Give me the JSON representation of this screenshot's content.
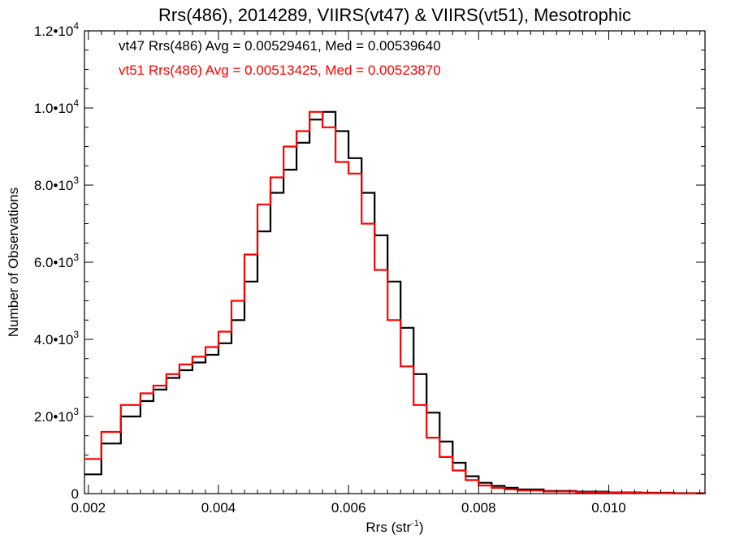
{
  "chart_data": {
    "type": "line",
    "title": "Rrs(486), 2014289, VIIRS(vt47) & VIIRS(vt51), Mesotrophic",
    "xlabel": "Rrs (str",
    "xlabel_sup": "-1",
    "xlabel_end": ")",
    "ylabel": "Number of Observations",
    "xlim": [
      0.00194,
      0.01148
    ],
    "ylim": [
      0,
      12000
    ],
    "x_ticks": [
      0.002,
      0.004,
      0.006,
      0.008,
      0.01
    ],
    "x_tick_labels": [
      "0.002",
      "0.004",
      "0.006",
      "0.008",
      "0.010"
    ],
    "y_ticks": [
      {
        "value": 0,
        "mant": "0",
        "exp": ""
      },
      {
        "value": 2000,
        "mant": "2.0•10",
        "exp": "3"
      },
      {
        "value": 4000,
        "mant": "4.0•10",
        "exp": "3"
      },
      {
        "value": 6000,
        "mant": "6.0•10",
        "exp": "3"
      },
      {
        "value": 8000,
        "mant": "8.0•10",
        "exp": "3"
      },
      {
        "value": 10000,
        "mant": "1.0•10",
        "exp": "4"
      },
      {
        "value": 12000,
        "mant": "1.2•10",
        "exp": "4"
      }
    ],
    "annotations": [
      {
        "text": "vt47 Rrs(486) Avg = 0.00529461, Med = 0.00539640",
        "color": "#000000"
      },
      {
        "text": "vt51 Rrs(486) Avg = 0.00513425, Med = 0.00523870",
        "color": "#ff0000"
      }
    ],
    "series": [
      {
        "color": "#000000",
        "x": [
          0.00194,
          0.0022,
          0.0025,
          0.0028,
          0.003,
          0.0032,
          0.0034,
          0.0036,
          0.0038,
          0.004,
          0.0042,
          0.0044,
          0.0046,
          0.0048,
          0.005,
          0.0052,
          0.0054,
          0.0056,
          0.0058,
          0.006,
          0.0062,
          0.0064,
          0.0066,
          0.0068,
          0.007,
          0.0072,
          0.0074,
          0.0076,
          0.0078,
          0.008,
          0.0082,
          0.0084,
          0.0086,
          0.009,
          0.0095,
          0.01,
          0.0105,
          0.011,
          0.01148
        ],
        "y": [
          500,
          1300,
          2000,
          2400,
          2700,
          3000,
          3200,
          3400,
          3600,
          3900,
          4500,
          5500,
          6800,
          7800,
          8400,
          9100,
          9700,
          9900,
          9400,
          8700,
          7800,
          6700,
          5500,
          4300,
          3100,
          2100,
          1350,
          800,
          450,
          280,
          200,
          150,
          110,
          70,
          50,
          30,
          20,
          10,
          5
        ]
      },
      {
        "color": "#ff0000",
        "x": [
          0.00194,
          0.0022,
          0.0025,
          0.0028,
          0.003,
          0.0032,
          0.0034,
          0.0036,
          0.0038,
          0.004,
          0.0042,
          0.0044,
          0.0046,
          0.0048,
          0.005,
          0.0052,
          0.0054,
          0.0056,
          0.0058,
          0.006,
          0.0062,
          0.0064,
          0.0066,
          0.0068,
          0.007,
          0.0072,
          0.0074,
          0.0076,
          0.0078,
          0.008,
          0.0082,
          0.0084,
          0.0086,
          0.009,
          0.0095,
          0.01,
          0.0105,
          0.011,
          0.01148
        ],
        "y": [
          900,
          1600,
          2300,
          2600,
          2800,
          3100,
          3350,
          3550,
          3800,
          4200,
          5000,
          6200,
          7500,
          8200,
          9000,
          9400,
          9900,
          9500,
          8600,
          8300,
          7000,
          5800,
          4500,
          3300,
          2300,
          1450,
          950,
          600,
          350,
          210,
          150,
          110,
          80,
          55,
          35,
          20,
          12,
          6,
          3
        ]
      }
    ]
  }
}
